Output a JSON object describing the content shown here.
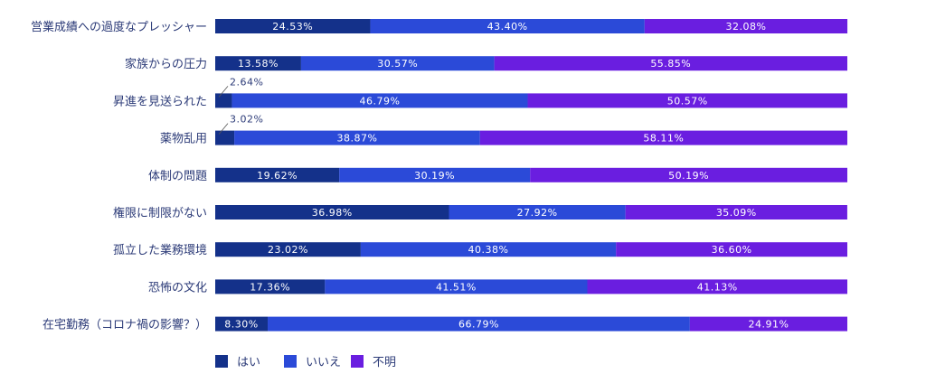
{
  "chart_data": {
    "type": "bar",
    "orientation": "horizontal",
    "stacked": true,
    "percent": true,
    "title": "",
    "xlabel": "",
    "ylabel": "",
    "xlim": [
      0,
      100
    ],
    "grid": false,
    "legend_position": "bottom-left",
    "categories": [
      "営業成績への過度なプレッシャー",
      "家族からの圧力",
      "昇進を見送られた",
      "薬物乱用",
      "体制の問題",
      "権限に制限がない",
      "孤立した業務環境",
      "恐怖の文化",
      "在宅勤務（コロナ禍の影響？）"
    ],
    "series": [
      {
        "name": "はい",
        "color": "#14318a",
        "values": [
          24.53,
          13.58,
          2.64,
          3.02,
          19.62,
          36.98,
          23.02,
          17.36,
          8.3
        ],
        "labels": [
          "24.53%",
          "13.58%",
          "2.64%",
          "3.02%",
          "19.62%",
          "36.98%",
          "23.02%",
          "17.36%",
          "8.30%"
        ]
      },
      {
        "name": "いいえ",
        "color": "#2b4ad8",
        "values": [
          43.4,
          30.57,
          46.79,
          38.87,
          30.19,
          27.92,
          40.38,
          41.51,
          66.79
        ],
        "labels": [
          "43.40%",
          "30.57%",
          "46.79%",
          "38.87%",
          "30.19%",
          "27.92%",
          "40.38%",
          "41.51%",
          "66.79%"
        ]
      },
      {
        "name": "不明",
        "color": "#6a1ee0",
        "values": [
          32.08,
          55.85,
          50.57,
          58.11,
          50.19,
          35.09,
          36.6,
          41.13,
          24.91
        ],
        "labels": [
          "32.08%",
          "55.85%",
          "50.57%",
          "58.11%",
          "50.19%",
          "35.09%",
          "36.60%",
          "41.13%",
          "24.91%"
        ]
      }
    ]
  }
}
